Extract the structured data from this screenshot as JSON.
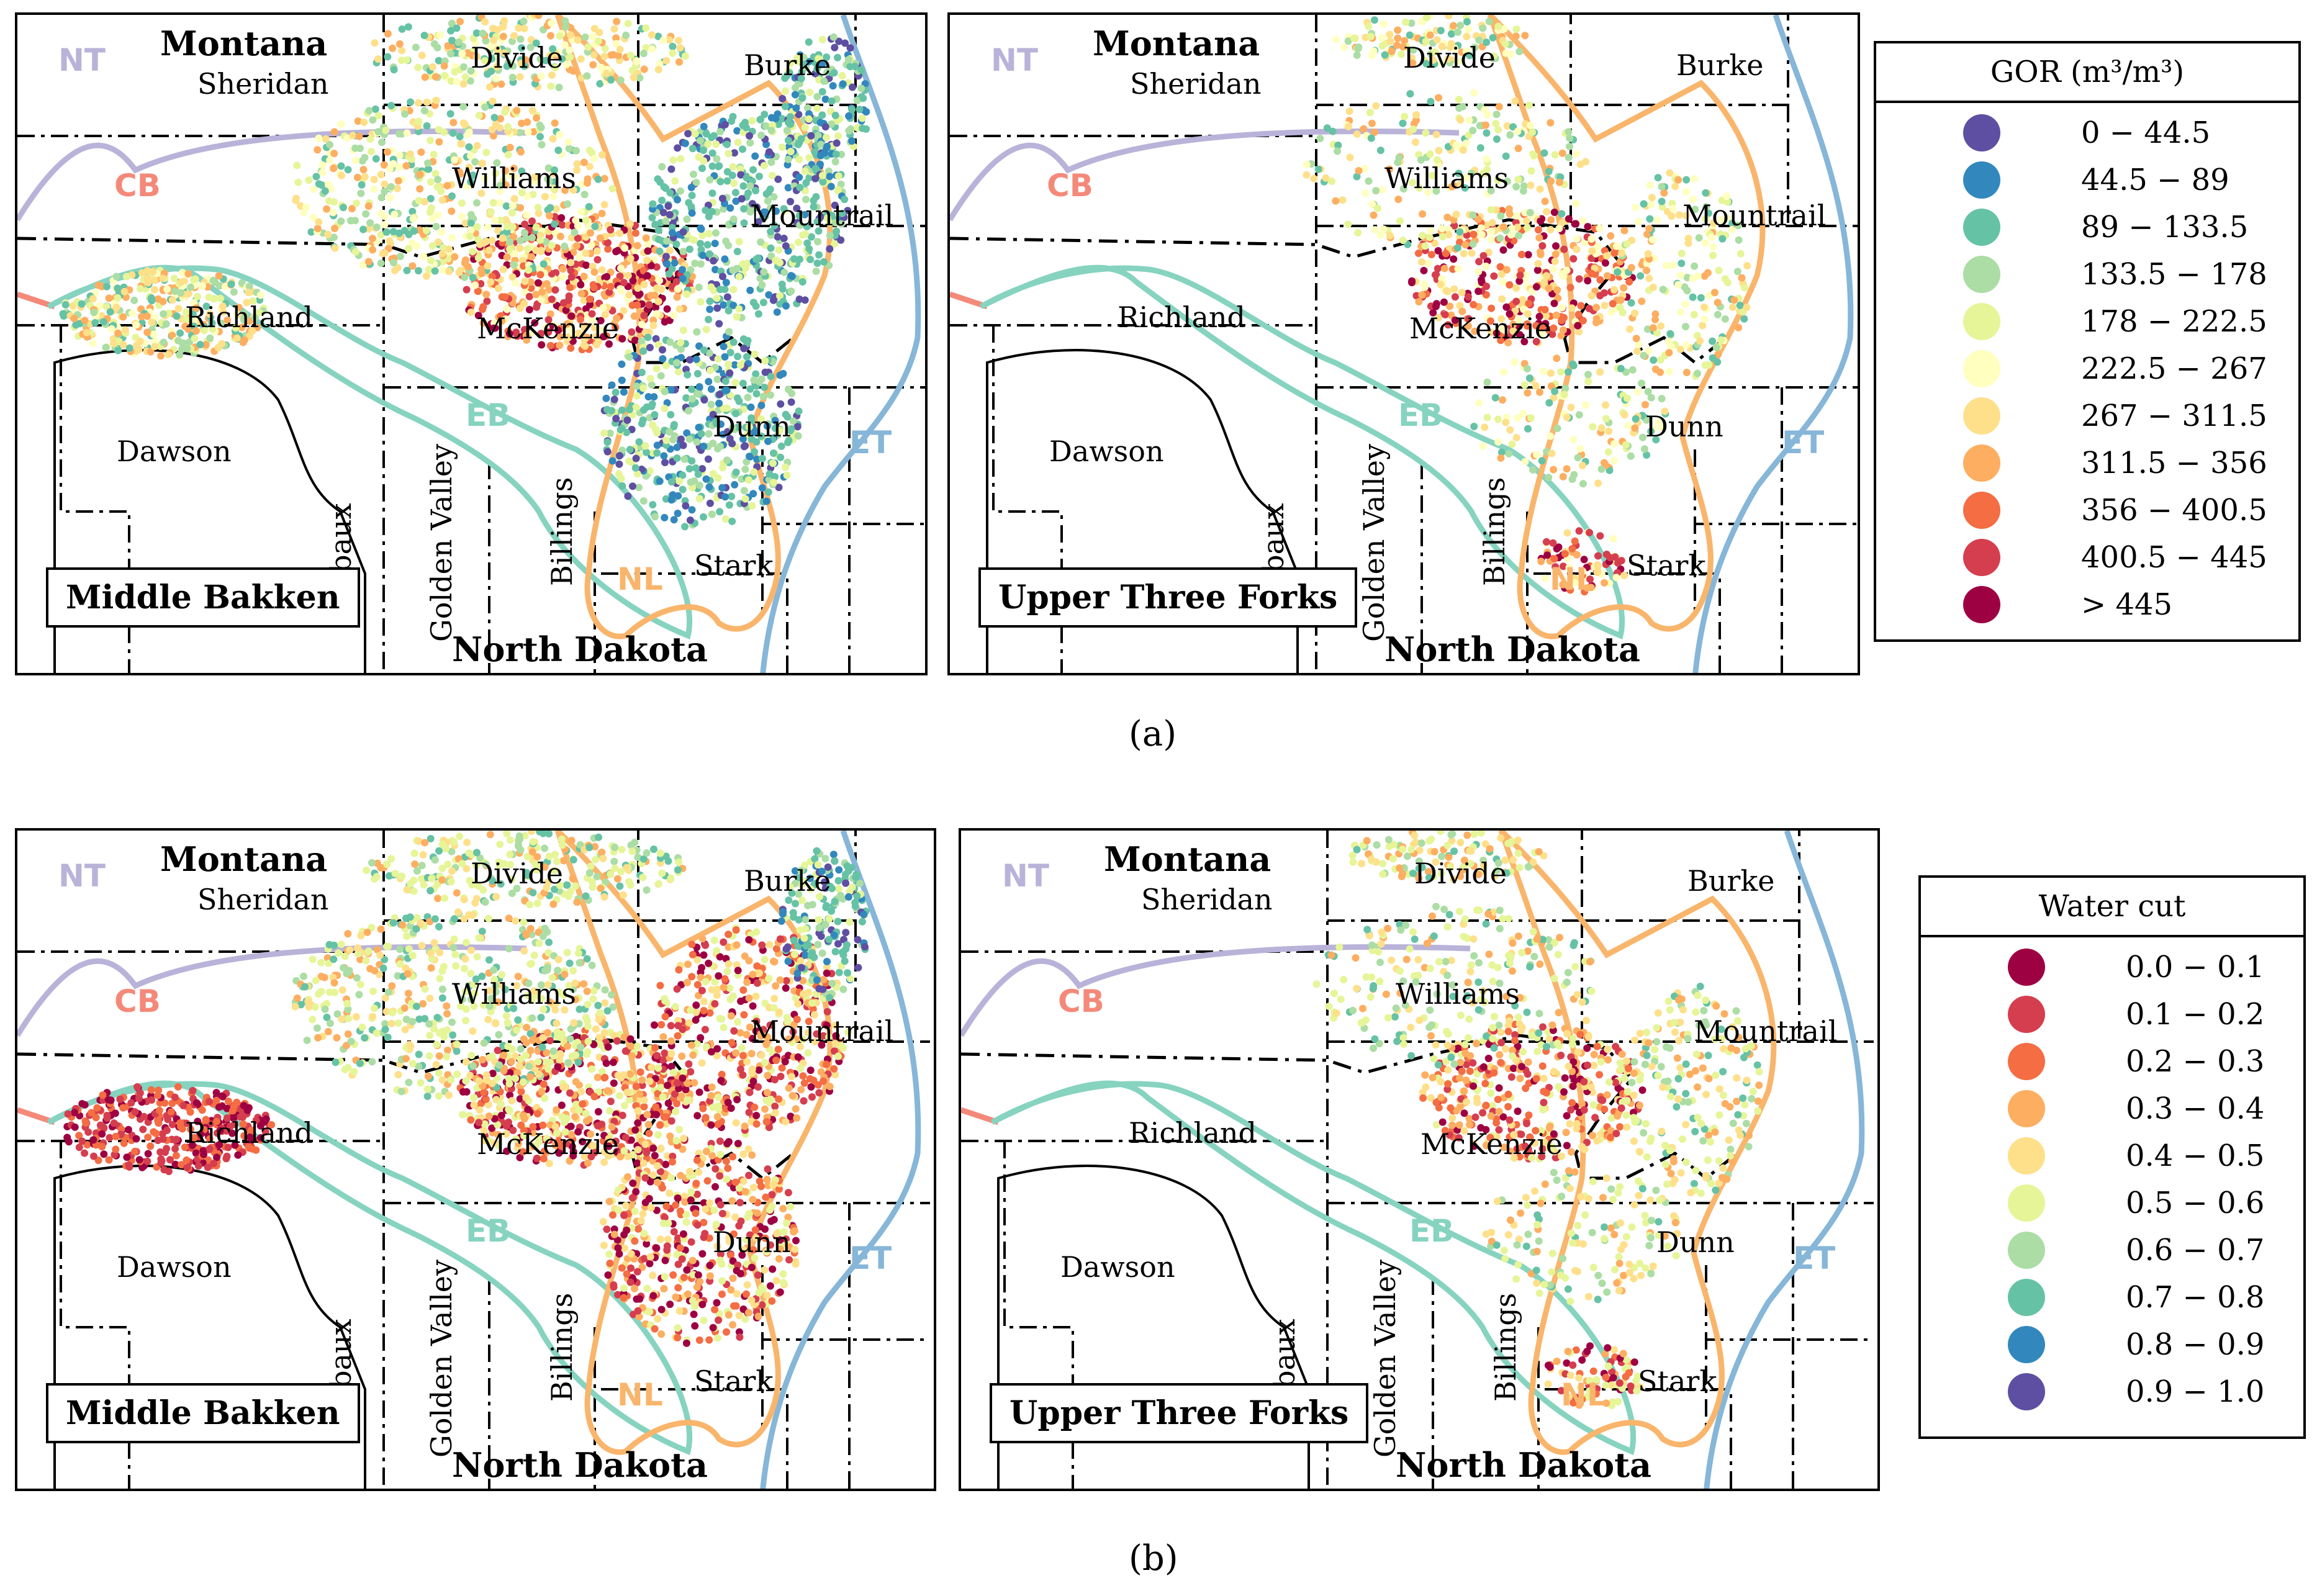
{
  "caption_a": "(a)",
  "caption_b": "(b)",
  "labels": {
    "state_montana": "Montana",
    "state_north_dakota": "North Dakota",
    "counties": {
      "sheridan": "Sheridan",
      "divide": "Divide",
      "burke": "Burke",
      "williams": "Williams",
      "mountrail": "Mountrail",
      "richland": "Richland",
      "mckenzie": "McKenzie",
      "dawson": "Dawson",
      "wibaux": "Wibaux",
      "golden_valley": "Golden Valley",
      "billings": "Billings",
      "dunn": "Dunn",
      "stark": "Stark"
    },
    "basins": {
      "nt": "NT",
      "cb": "CB",
      "eb": "EB",
      "et": "ET",
      "nl": "NL"
    }
  },
  "panels": [
    {
      "formation": "Middle Bakken",
      "variable": "GOR",
      "row": "a"
    },
    {
      "formation": "Upper Three Forks",
      "variable": "GOR",
      "row": "a"
    },
    {
      "formation": "Middle Bakken",
      "variable": "Water cut",
      "row": "b"
    },
    {
      "formation": "Upper Three Forks",
      "variable": "Water cut",
      "row": "b"
    }
  ],
  "colors": {
    "basin_nt": "#b9b3d9",
    "basin_cb": "#f4897a",
    "basin_eb": "#86d3c0",
    "basin_et": "#86b6d8",
    "basin_nl": "#f9b56b"
  },
  "legend_gor": {
    "title": "GOR (m³/m³)",
    "items": [
      {
        "label": "0 − 44.5",
        "color": "#5e4fa2"
      },
      {
        "label": "44.5 − 89",
        "color": "#3288bd"
      },
      {
        "label": "89 − 133.5",
        "color": "#66c2a5"
      },
      {
        "label": "133.5 − 178",
        "color": "#abdda4"
      },
      {
        "label": "178 − 222.5",
        "color": "#e6f598"
      },
      {
        "label": "222.5 − 267",
        "color": "#ffffbf"
      },
      {
        "label": "267 − 311.5",
        "color": "#fee08b"
      },
      {
        "label": "311.5 − 356",
        "color": "#fdae61"
      },
      {
        "label": "356 − 400.5",
        "color": "#f46d43"
      },
      {
        "label": "400.5 − 445",
        "color": "#d53e4f"
      },
      {
        "label": "> 445",
        "color": "#9e0142"
      }
    ]
  },
  "legend_water": {
    "title": "Water cut",
    "items": [
      {
        "label": "0.0 − 0.1",
        "color": "#9e0142"
      },
      {
        "label": "0.1 − 0.2",
        "color": "#d53e4f"
      },
      {
        "label": "0.2 − 0.3",
        "color": "#f46d43"
      },
      {
        "label": "0.3 − 0.4",
        "color": "#fdae61"
      },
      {
        "label": "0.4 − 0.5",
        "color": "#fee08b"
      },
      {
        "label": "0.5 − 0.6",
        "color": "#e6f598"
      },
      {
        "label": "0.6 − 0.7",
        "color": "#abdda4"
      },
      {
        "label": "0.7 − 0.8",
        "color": "#66c2a5"
      },
      {
        "label": "0.8 − 0.9",
        "color": "#3288bd"
      },
      {
        "label": "0.9 − 1.0",
        "color": "#5e4fa2"
      }
    ]
  }
}
